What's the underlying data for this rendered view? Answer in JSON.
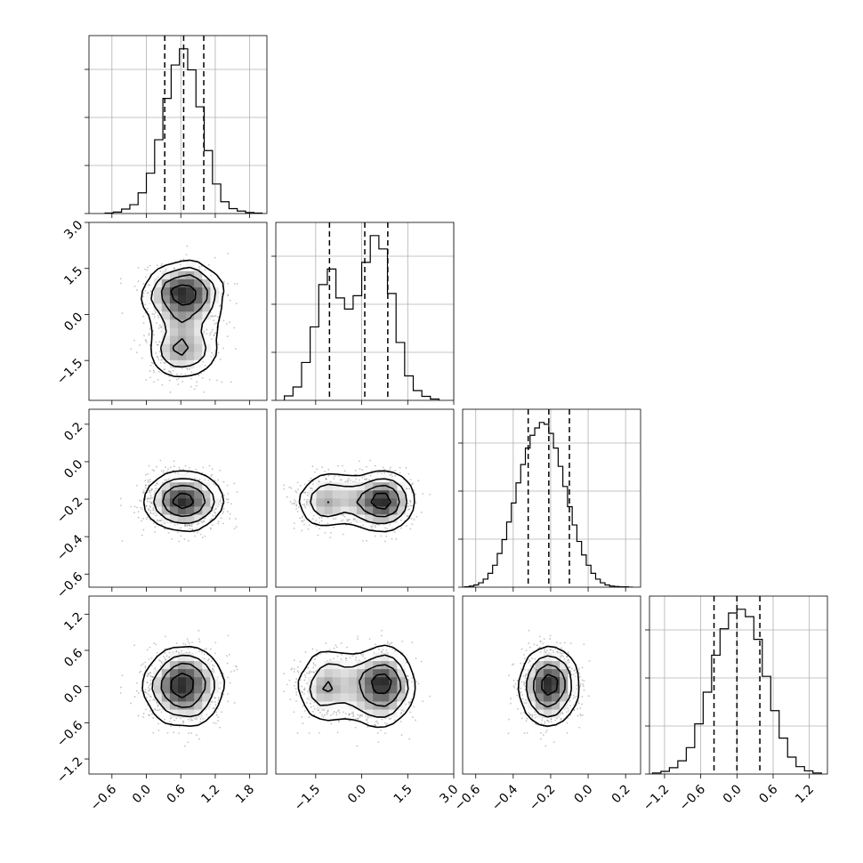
{
  "chart_data": {
    "type": "corner",
    "n_params": 4,
    "labels": [
      "",
      "",
      "",
      ""
    ],
    "ranges": [
      [
        -1.0,
        2.1
      ],
      [
        -2.8,
        3.0
      ],
      [
        -0.67,
        0.28
      ],
      [
        -1.45,
        1.5
      ]
    ],
    "ticks": [
      {
        "values": [
          -0.6,
          0.0,
          0.6,
          1.2,
          1.8
        ],
        "labels": [
          "−0.6",
          "0.0",
          "0.6",
          "1.2",
          "1.8"
        ]
      },
      {
        "values": [
          -1.5,
          0.0,
          1.5,
          3.0
        ],
        "labels": [
          "−1.5",
          "0.0",
          "1.5",
          "3.0"
        ]
      },
      {
        "values": [
          -0.6,
          -0.4,
          -0.2,
          0.0,
          0.2
        ],
        "labels": [
          "−0.6",
          "−0.4",
          "−0.2",
          "0.0",
          "0.2"
        ]
      },
      {
        "values": [
          -1.2,
          -0.6,
          0.0,
          0.6,
          1.2
        ],
        "labels": [
          "−1.2",
          "−0.6",
          "0.0",
          "0.6",
          "1.2"
        ]
      }
    ],
    "marginals": [
      {
        "param": 0,
        "quantiles": [
          0.32,
          0.65,
          1.0
        ],
        "bin_edges": [
          -0.72,
          -0.576,
          -0.432,
          -0.288,
          -0.144,
          0.0,
          0.144,
          0.288,
          0.432,
          0.576,
          0.72,
          0.864,
          1.008,
          1.152,
          1.296,
          1.44,
          1.584,
          1.728,
          1.872,
          2.016
        ],
        "counts": [
          0.01,
          0.03,
          0.09,
          0.18,
          0.42,
          0.82,
          1.5,
          2.34,
          3.02,
          3.35,
          2.92,
          2.17,
          1.28,
          0.6,
          0.24,
          0.1,
          0.05,
          0.02,
          0.01
        ]
      },
      {
        "param": 1,
        "quantiles": [
          -1.05,
          0.1,
          0.85
        ],
        "bin_edges": [
          -2.52,
          -2.24,
          -1.96,
          -1.68,
          -1.4,
          -1.12,
          -0.84,
          -0.56,
          -0.28,
          0.0,
          0.28,
          0.56,
          0.84,
          1.12,
          1.4,
          1.68,
          1.96,
          2.24,
          2.52
        ],
        "counts": [
          0.1,
          0.3,
          0.85,
          1.65,
          2.6,
          2.95,
          2.3,
          2.05,
          2.35,
          3.1,
          3.7,
          3.4,
          2.4,
          1.3,
          0.55,
          0.22,
          0.09,
          0.03
        ]
      },
      {
        "param": 2,
        "quantiles": [
          -0.32,
          -0.21,
          -0.1
        ],
        "bin_edges": [
          -0.66,
          -0.635,
          -0.61,
          -0.585,
          -0.56,
          -0.535,
          -0.51,
          -0.485,
          -0.46,
          -0.435,
          -0.41,
          -0.385,
          -0.36,
          -0.335,
          -0.31,
          -0.285,
          -0.26,
          -0.235,
          -0.21,
          -0.185,
          -0.16,
          -0.135,
          -0.11,
          -0.085,
          -0.06,
          -0.035,
          -0.01,
          0.015,
          0.04,
          0.065,
          0.09,
          0.115,
          0.14,
          0.165,
          0.19,
          0.215,
          0.24
        ],
        "counts": [
          0.01,
          0.03,
          0.06,
          0.12,
          0.22,
          0.38,
          0.6,
          0.92,
          1.3,
          1.78,
          2.3,
          2.85,
          3.35,
          3.8,
          4.15,
          4.35,
          4.5,
          4.45,
          4.2,
          3.8,
          3.3,
          2.75,
          2.2,
          1.7,
          1.25,
          0.88,
          0.6,
          0.38,
          0.22,
          0.12,
          0.06,
          0.03,
          0.02,
          0.01,
          0.01,
          0.0
        ]
      },
      {
        "param": 3,
        "quantiles": [
          -0.38,
          0.0,
          0.38
        ],
        "bin_edges": [
          -1.4,
          -1.26,
          -1.12,
          -0.98,
          -0.84,
          -0.7,
          -0.56,
          -0.42,
          -0.28,
          -0.14,
          0.0,
          0.14,
          0.28,
          0.42,
          0.56,
          0.7,
          0.84,
          0.98,
          1.12,
          1.26,
          1.4
        ],
        "counts": [
          0.02,
          0.05,
          0.12,
          0.25,
          0.5,
          0.95,
          1.55,
          2.25,
          2.75,
          3.05,
          3.12,
          2.98,
          2.55,
          1.85,
          1.2,
          0.68,
          0.32,
          0.14,
          0.06,
          0.02
        ]
      }
    ],
    "joint_model": {
      "param_means": [
        0.65,
        0.0,
        -0.21,
        0.0
      ],
      "param_sd": [
        0.32,
        1.0,
        0.07,
        0.3
      ],
      "bimodal_param": 1,
      "bimodal_modes": [
        -1.1,
        0.6
      ],
      "bimodal_weights": [
        0.35,
        0.65
      ],
      "bimodal_sd": 0.5
    }
  }
}
